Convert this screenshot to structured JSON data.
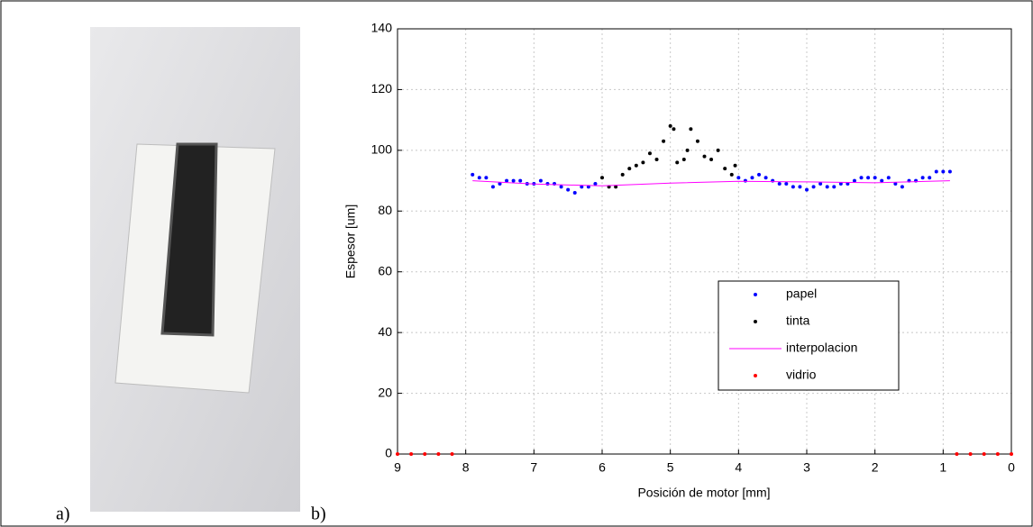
{
  "panel_labels": [
    "a)",
    "b)"
  ],
  "chart_data": {
    "type": "scatter",
    "x_label": "Posición de motor [mm]",
    "y_label": "Espesor [um]",
    "xlim": [
      9,
      0
    ],
    "ylim": [
      0,
      140
    ],
    "xticks": [
      9,
      8,
      7,
      6,
      5,
      4,
      3,
      2,
      1,
      0
    ],
    "yticks": [
      0,
      20,
      40,
      60,
      80,
      100,
      120,
      140
    ],
    "grid": true,
    "legend": "lower right",
    "series": [
      {
        "name": "papel",
        "color": "#0000ff",
        "marker": "dot",
        "x": [
          7.9,
          7.8,
          7.7,
          7.6,
          7.5,
          7.4,
          7.3,
          7.2,
          7.1,
          7.0,
          6.9,
          6.8,
          6.7,
          6.6,
          6.5,
          6.4,
          6.3,
          6.2,
          6.1,
          4.0,
          3.9,
          3.8,
          3.7,
          3.6,
          3.5,
          3.4,
          3.3,
          3.2,
          3.1,
          3.0,
          2.9,
          2.8,
          2.7,
          2.6,
          2.5,
          2.4,
          2.3,
          2.2,
          2.1,
          2.0,
          1.9,
          1.8,
          1.7,
          1.6,
          1.5,
          1.4,
          1.3,
          1.2,
          1.1,
          1.0,
          0.9
        ],
        "values": [
          92,
          91,
          91,
          88,
          89,
          90,
          90,
          90,
          89,
          89,
          90,
          89,
          89,
          88,
          87,
          86,
          88,
          88,
          89,
          91,
          90,
          91,
          92,
          91,
          90,
          89,
          89,
          88,
          88,
          87,
          88,
          89,
          88,
          88,
          89,
          89,
          90,
          91,
          91,
          91,
          90,
          91,
          89,
          88,
          90,
          90,
          91,
          91,
          93,
          93,
          93
        ]
      },
      {
        "name": "tinta",
        "color": "#000000",
        "marker": "dot",
        "x": [
          6.0,
          5.9,
          5.8,
          5.7,
          5.6,
          5.5,
          5.4,
          5.3,
          5.2,
          5.1,
          5.0,
          4.95,
          4.9,
          4.8,
          4.75,
          4.7,
          4.6,
          4.5,
          4.4,
          4.3,
          4.2,
          4.1,
          4.05
        ],
        "values": [
          91,
          88,
          88,
          92,
          94,
          95,
          96,
          99,
          97,
          103,
          108,
          107,
          96,
          97,
          100,
          107,
          103,
          98,
          97,
          100,
          94,
          92,
          95
        ]
      },
      {
        "name": "interpolacion",
        "color": "#ff00ff",
        "marker": "line",
        "x": [
          7.9,
          7.0,
          6.0,
          5.0,
          4.0,
          3.0,
          2.0,
          0.9
        ],
        "values": [
          90,
          88.9,
          88.3,
          89.2,
          89.8,
          89.6,
          89.3,
          90
        ]
      },
      {
        "name": "vidrio",
        "color": "#ff0000",
        "marker": "dot",
        "x": [
          9.0,
          8.8,
          8.6,
          8.4,
          8.2,
          0.8,
          0.6,
          0.4,
          0.2,
          0.0
        ],
        "values": [
          0,
          0,
          0,
          0,
          0,
          0,
          0,
          0,
          0,
          0
        ]
      }
    ]
  }
}
